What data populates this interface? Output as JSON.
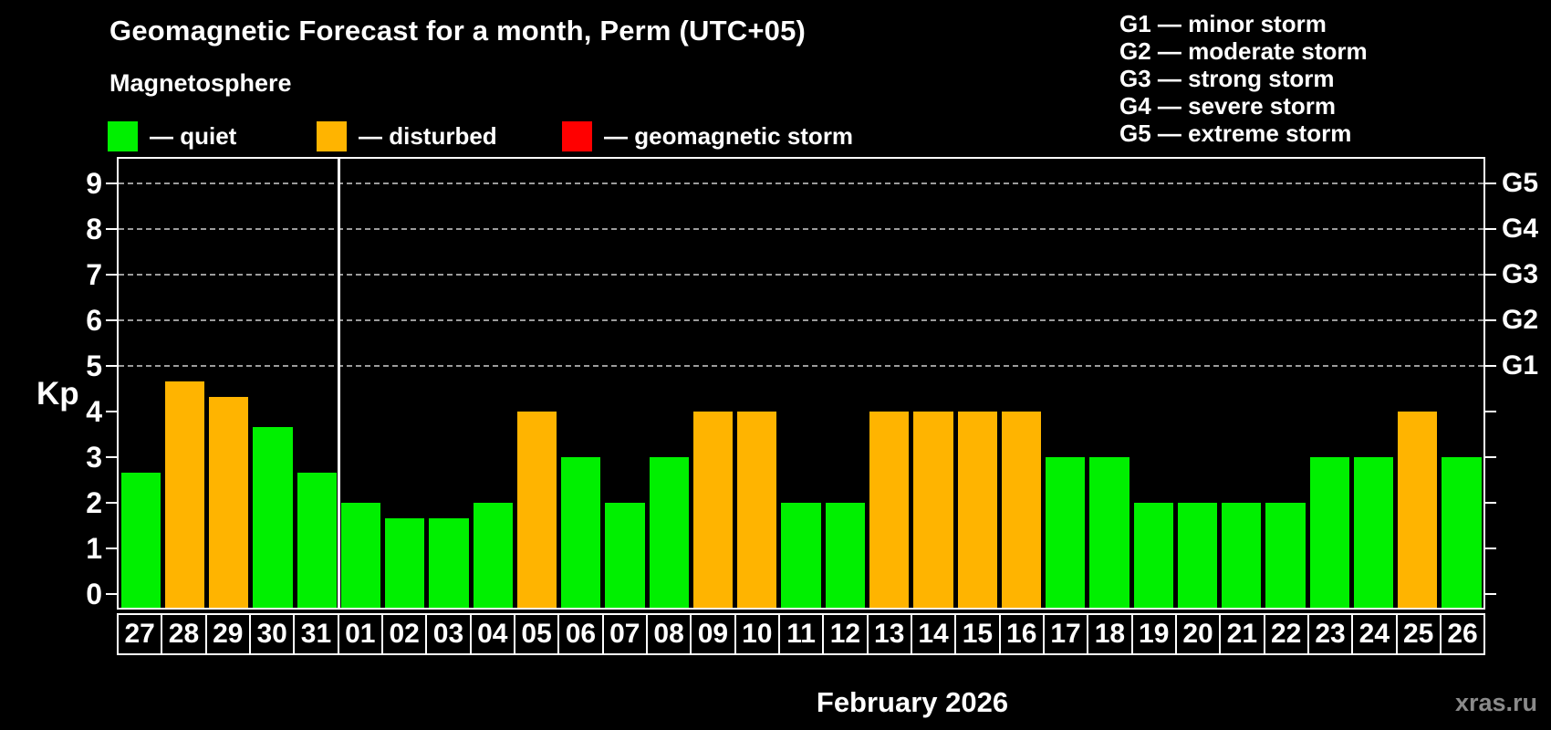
{
  "header": {
    "title": "Geomagnetic Forecast for a month, Perm (UTC+05)",
    "subtitle": "Magnetosphere",
    "legend": [
      {
        "label": "— quiet",
        "status": "quiet"
      },
      {
        "label": "— disturbed",
        "status": "disturbed"
      },
      {
        "label": "— geomagnetic storm",
        "status": "storm"
      }
    ],
    "g_legend": [
      "G1 — minor storm",
      "G2 — moderate storm",
      "G3 — strong storm",
      "G4 — severe storm",
      "G5 — extreme storm"
    ]
  },
  "colors": {
    "quiet": "#00f000",
    "disturbed": "#ffb400",
    "storm": "#ff0000",
    "grid": "#9c9c9c",
    "axis": "#ffffff",
    "watermark": "#8a8a8a",
    "background": "#000000"
  },
  "chart_data": {
    "type": "bar",
    "title": "Geomagnetic Forecast for a month, Perm (UTC+05)",
    "ylabel": "Kp",
    "xlabel": "February 2026",
    "ylim": [
      -0.3,
      9.56
    ],
    "yticks": [
      0,
      1,
      2,
      3,
      4,
      5,
      6,
      7,
      8,
      9
    ],
    "grid_levels_kp": [
      5,
      6,
      7,
      8,
      9
    ],
    "right_axis_labels": [
      {
        "label": "G1",
        "kp": 5
      },
      {
        "label": "G2",
        "kp": 6
      },
      {
        "label": "G3",
        "kp": 7
      },
      {
        "label": "G4",
        "kp": 8
      },
      {
        "label": "G5",
        "kp": 9
      }
    ],
    "month_separator_after_index": 4,
    "categories": [
      "27",
      "28",
      "29",
      "30",
      "31",
      "01",
      "02",
      "03",
      "04",
      "05",
      "06",
      "07",
      "08",
      "09",
      "10",
      "11",
      "12",
      "13",
      "14",
      "15",
      "16",
      "17",
      "18",
      "19",
      "20",
      "21",
      "22",
      "23",
      "24",
      "25",
      "26"
    ],
    "values": [
      2.67,
      4.67,
      4.33,
      3.67,
      2.67,
      2,
      1.67,
      1.67,
      2,
      4,
      3,
      2,
      3,
      4,
      4,
      2,
      2,
      4,
      4,
      4,
      4,
      3,
      3,
      2,
      2,
      2,
      2,
      3,
      3,
      4,
      3
    ],
    "statuses": [
      "quiet",
      "disturbed",
      "disturbed",
      "quiet",
      "quiet",
      "quiet",
      "quiet",
      "quiet",
      "quiet",
      "disturbed",
      "quiet",
      "quiet",
      "quiet",
      "disturbed",
      "disturbed",
      "quiet",
      "quiet",
      "disturbed",
      "disturbed",
      "disturbed",
      "disturbed",
      "quiet",
      "quiet",
      "quiet",
      "quiet",
      "quiet",
      "quiet",
      "quiet",
      "quiet",
      "disturbed",
      "quiet"
    ],
    "legend_position": "top",
    "grid": "dashed-horizontal"
  },
  "footer": {
    "caption": "February 2026",
    "watermark": "xras.ru"
  }
}
